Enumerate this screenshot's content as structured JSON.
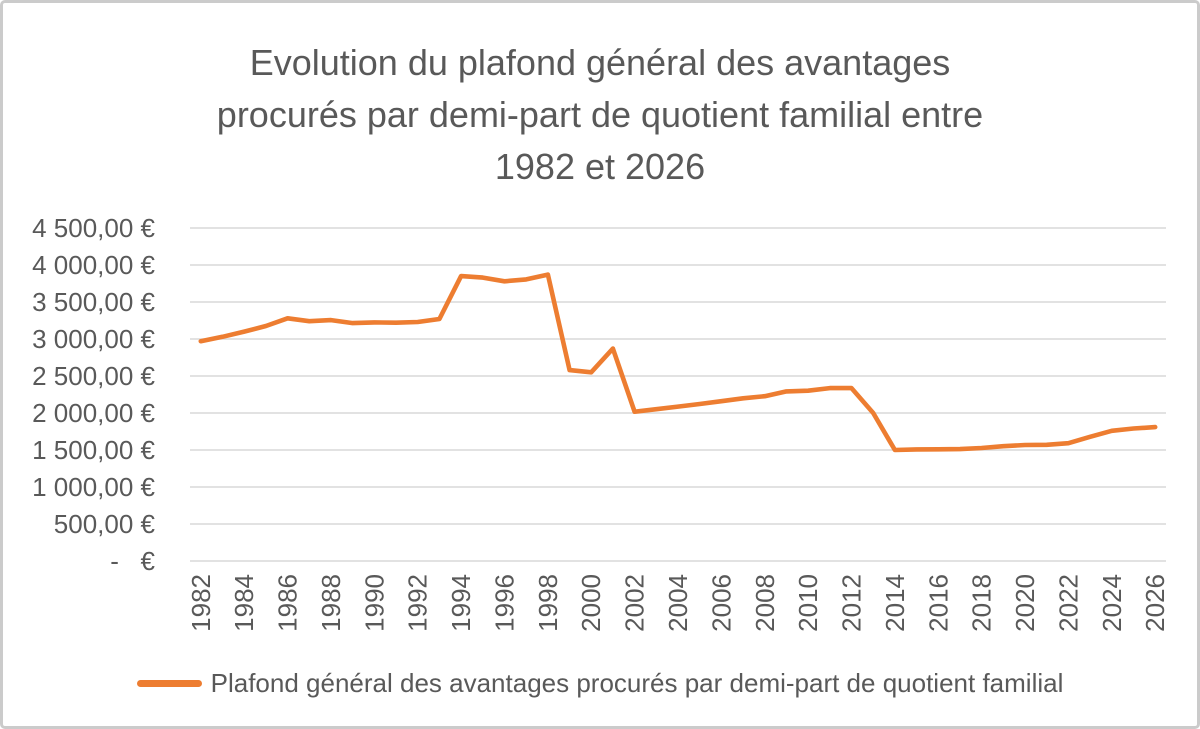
{
  "chart_data": {
    "type": "line",
    "title": "Evolution du plafond général des avantages procurés par demi-part de quotient familial entre 1982 et 2026",
    "title_lines": [
      "Evolution du plafond général des avantages",
      "procurés par demi-part de quotient familial entre",
      "1982 et 2026"
    ],
    "x": [
      1982,
      1983,
      1984,
      1985,
      1986,
      1987,
      1988,
      1989,
      1990,
      1991,
      1992,
      1993,
      1994,
      1995,
      1996,
      1997,
      1998,
      1999,
      2000,
      2001,
      2002,
      2003,
      2004,
      2005,
      2006,
      2007,
      2008,
      2009,
      2010,
      2011,
      2012,
      2013,
      2014,
      2015,
      2016,
      2017,
      2018,
      2019,
      2020,
      2021,
      2022,
      2023,
      2024,
      2025,
      2026
    ],
    "series": [
      {
        "name": "Plafond général des avantages procurés par demi-part de quotient familial",
        "color": "#ED7D31",
        "values": [
          2970,
          3030,
          3100,
          3175,
          3280,
          3240,
          3255,
          3215,
          3225,
          3220,
          3230,
          3270,
          3850,
          3830,
          3780,
          3805,
          3870,
          2580,
          2550,
          2870,
          2017,
          2051,
          2086,
          2121,
          2159,
          2198,
          2227,
          2292,
          2301,
          2336,
          2336,
          2000,
          1500,
          1508,
          1510,
          1512,
          1527,
          1551,
          1567,
          1570,
          1592,
          1678,
          1759,
          1791,
          1810
        ]
      }
    ],
    "x_tick_labels": [
      "1982",
      "1984",
      "1986",
      "1988",
      "1990",
      "1992",
      "1994",
      "1996",
      "1998",
      "2000",
      "2002",
      "2004",
      "2006",
      "2008",
      "2010",
      "2012",
      "2014",
      "2016",
      "2018",
      "2020",
      "2022",
      "2024",
      "2026"
    ],
    "y_tick_labels": [
      "4 500,00 €",
      "4 000,00 €",
      "3 500,00 €",
      "3 000,00 €",
      "2 500,00 €",
      "2 000,00 €",
      "1 500,00 €",
      "1 000,00 €",
      "500,00 €",
      "-   €"
    ],
    "y_axis": {
      "min": 0,
      "max": 4500,
      "step": 500
    },
    "unit": "€",
    "grid": "horizontal",
    "legend_position": "bottom",
    "text_color": "#595959",
    "gridline_color": "#D9D9D9",
    "border_color": "#CBCBCB",
    "background_color": "#FFFFFF"
  }
}
